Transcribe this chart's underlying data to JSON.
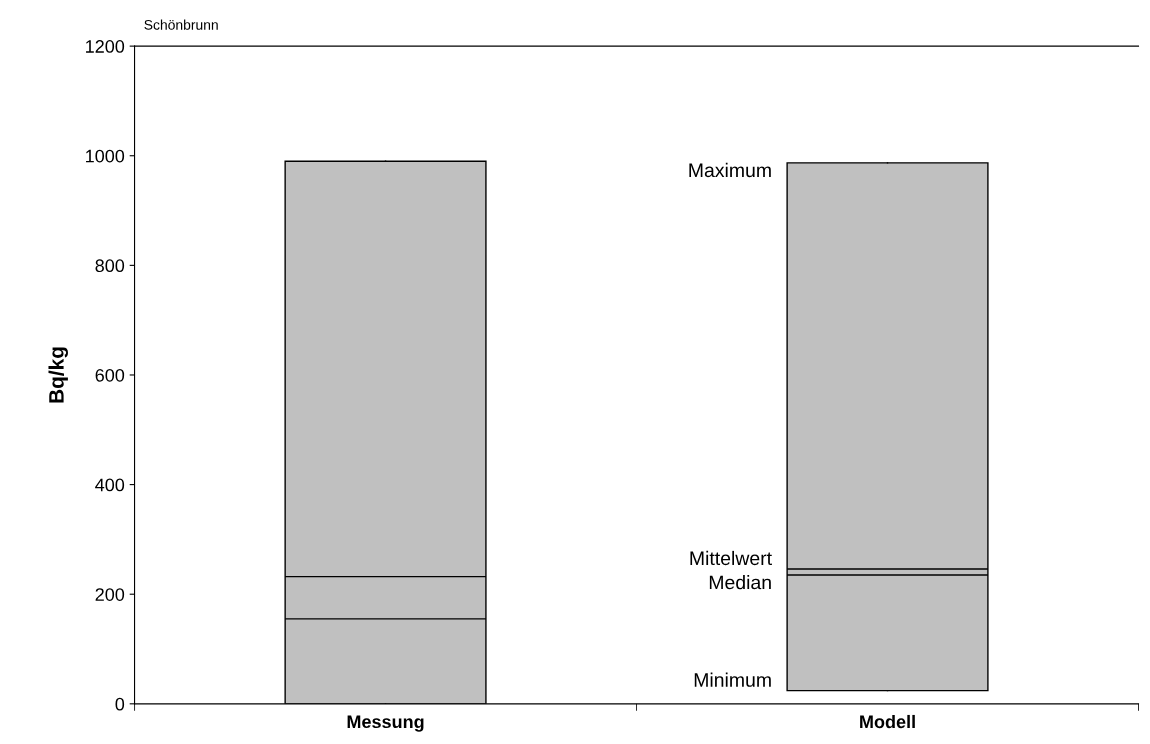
{
  "chart_data": {
    "type": "box",
    "title": "Schönbrunn",
    "ylabel": "Bq/kg",
    "categories": [
      "Messung",
      "Modell"
    ],
    "boxes": [
      {
        "low": 0,
        "q1": 0,
        "median": 155,
        "q3": 990,
        "high": 990,
        "mean": 232
      },
      {
        "low": 24,
        "q1": 24,
        "median": 235,
        "q3": 987,
        "high": 987,
        "mean": 246
      }
    ],
    "color": "#c0c0c0",
    "ylim": [
      0,
      1200
    ],
    "yticks": [
      0,
      200,
      400,
      600,
      800,
      1000,
      1200
    ],
    "grid": false,
    "annotations": [
      "Maximum",
      "Mittelwert",
      "Median",
      "Minimum"
    ]
  }
}
